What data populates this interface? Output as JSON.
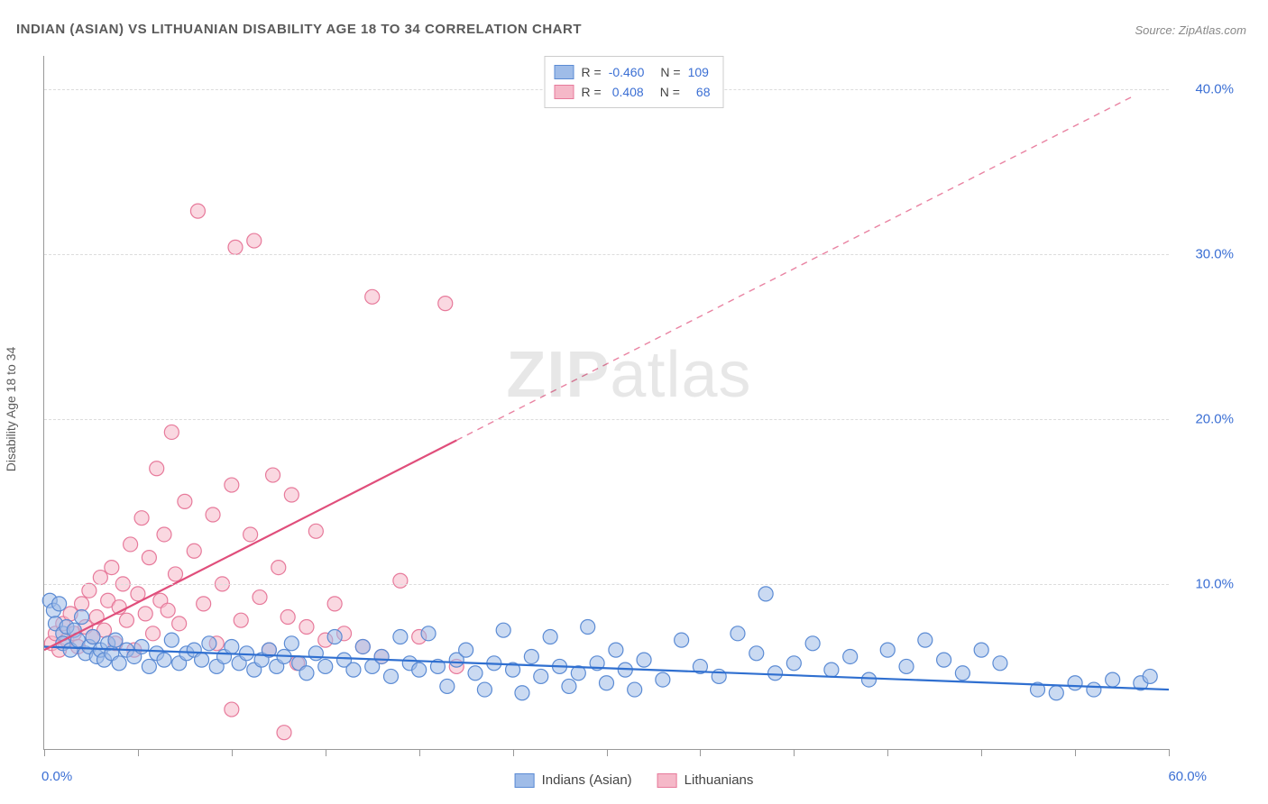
{
  "title": "INDIAN (ASIAN) VS LITHUANIAN DISABILITY AGE 18 TO 34 CORRELATION CHART",
  "source_label": "Source: ",
  "source_name": "ZipAtlas.com",
  "y_axis_label": "Disability Age 18 to 34",
  "watermark_a": "ZIP",
  "watermark_b": "atlas",
  "chart": {
    "type": "scatter",
    "xlim": [
      0,
      60
    ],
    "ylim": [
      0,
      42
    ],
    "x_min_label": "0.0%",
    "x_max_label": "60.0%",
    "x_tick_positions": [
      0,
      5,
      10,
      15,
      20,
      25,
      30,
      35,
      40,
      45,
      50,
      55,
      60
    ],
    "y_gridlines": [
      10,
      20,
      30,
      40
    ],
    "y_tick_labels": [
      "10.0%",
      "20.0%",
      "30.0%",
      "40.0%"
    ],
    "background_color": "#ffffff",
    "grid_color": "#dcdcdc",
    "axis_color": "#999999",
    "label_color": "#3b6fd4",
    "marker_radius": 8,
    "marker_opacity": 0.55,
    "line_width": 2.2,
    "series": [
      {
        "name": "Indians (Asian)",
        "color_fill": "#9fbce8",
        "color_stroke": "#5b8bd4",
        "line_color": "#2f6fd0",
        "R_label": "R = ",
        "R_value": "-0.460",
        "N_label": "N = ",
        "N_value": "109",
        "trend": {
          "x1": 0,
          "y1": 6.2,
          "x2": 60,
          "y2": 3.6,
          "dashed": false
        },
        "points": [
          [
            0.3,
            9.0
          ],
          [
            0.5,
            8.4
          ],
          [
            0.6,
            7.6
          ],
          [
            0.8,
            8.8
          ],
          [
            1.0,
            7.0
          ],
          [
            1.0,
            6.4
          ],
          [
            1.2,
            7.4
          ],
          [
            1.4,
            6.0
          ],
          [
            1.6,
            7.2
          ],
          [
            1.8,
            6.6
          ],
          [
            2.0,
            8.0
          ],
          [
            2.2,
            5.8
          ],
          [
            2.4,
            6.2
          ],
          [
            2.6,
            6.8
          ],
          [
            2.8,
            5.6
          ],
          [
            3.0,
            6.0
          ],
          [
            3.2,
            5.4
          ],
          [
            3.4,
            6.4
          ],
          [
            3.6,
            5.8
          ],
          [
            3.8,
            6.6
          ],
          [
            4.0,
            5.2
          ],
          [
            4.4,
            6.0
          ],
          [
            4.8,
            5.6
          ],
          [
            5.2,
            6.2
          ],
          [
            5.6,
            5.0
          ],
          [
            6.0,
            5.8
          ],
          [
            6.4,
            5.4
          ],
          [
            6.8,
            6.6
          ],
          [
            7.2,
            5.2
          ],
          [
            7.6,
            5.8
          ],
          [
            8.0,
            6.0
          ],
          [
            8.4,
            5.4
          ],
          [
            8.8,
            6.4
          ],
          [
            9.2,
            5.0
          ],
          [
            9.6,
            5.6
          ],
          [
            10.0,
            6.2
          ],
          [
            10.4,
            5.2
          ],
          [
            10.8,
            5.8
          ],
          [
            11.2,
            4.8
          ],
          [
            11.6,
            5.4
          ],
          [
            12.0,
            6.0
          ],
          [
            12.4,
            5.0
          ],
          [
            12.8,
            5.6
          ],
          [
            13.2,
            6.4
          ],
          [
            13.6,
            5.2
          ],
          [
            14.0,
            4.6
          ],
          [
            14.5,
            5.8
          ],
          [
            15.0,
            5.0
          ],
          [
            15.5,
            6.8
          ],
          [
            16.0,
            5.4
          ],
          [
            16.5,
            4.8
          ],
          [
            17.0,
            6.2
          ],
          [
            17.5,
            5.0
          ],
          [
            18.0,
            5.6
          ],
          [
            18.5,
            4.4
          ],
          [
            19.0,
            6.8
          ],
          [
            19.5,
            5.2
          ],
          [
            20.0,
            4.8
          ],
          [
            20.5,
            7.0
          ],
          [
            21.0,
            5.0
          ],
          [
            21.5,
            3.8
          ],
          [
            22.0,
            5.4
          ],
          [
            22.5,
            6.0
          ],
          [
            23.0,
            4.6
          ],
          [
            23.5,
            3.6
          ],
          [
            24.0,
            5.2
          ],
          [
            24.5,
            7.2
          ],
          [
            25.0,
            4.8
          ],
          [
            25.5,
            3.4
          ],
          [
            26.0,
            5.6
          ],
          [
            26.5,
            4.4
          ],
          [
            27.0,
            6.8
          ],
          [
            27.5,
            5.0
          ],
          [
            28.0,
            3.8
          ],
          [
            28.5,
            4.6
          ],
          [
            29.0,
            7.4
          ],
          [
            29.5,
            5.2
          ],
          [
            30.0,
            4.0
          ],
          [
            30.5,
            6.0
          ],
          [
            31.0,
            4.8
          ],
          [
            31.5,
            3.6
          ],
          [
            32.0,
            5.4
          ],
          [
            33.0,
            4.2
          ],
          [
            34.0,
            6.6
          ],
          [
            35.0,
            5.0
          ],
          [
            36.0,
            4.4
          ],
          [
            37.0,
            7.0
          ],
          [
            38.0,
            5.8
          ],
          [
            38.5,
            9.4
          ],
          [
            39.0,
            4.6
          ],
          [
            40.0,
            5.2
          ],
          [
            41.0,
            6.4
          ],
          [
            42.0,
            4.8
          ],
          [
            43.0,
            5.6
          ],
          [
            44.0,
            4.2
          ],
          [
            45.0,
            6.0
          ],
          [
            46.0,
            5.0
          ],
          [
            47.0,
            6.6
          ],
          [
            48.0,
            5.4
          ],
          [
            49.0,
            4.6
          ],
          [
            50.0,
            6.0
          ],
          [
            51.0,
            5.2
          ],
          [
            53.0,
            3.6
          ],
          [
            54.0,
            3.4
          ],
          [
            55.0,
            4.0
          ],
          [
            56.0,
            3.6
          ],
          [
            57.0,
            4.2
          ],
          [
            58.5,
            4.0
          ],
          [
            59.0,
            4.4
          ]
        ]
      },
      {
        "name": "Lithuanians",
        "color_fill": "#f5b8c8",
        "color_stroke": "#e77a9b",
        "line_color": "#e04e7b",
        "R_label": "R = ",
        "R_value": "0.408",
        "N_label": "N = ",
        "N_value": "68",
        "trend": {
          "x1": 0,
          "y1": 6.0,
          "x2": 58,
          "y2": 39.5,
          "dashed_after_x": 22
        },
        "points": [
          [
            0.4,
            6.4
          ],
          [
            0.6,
            7.0
          ],
          [
            0.8,
            6.0
          ],
          [
            1.0,
            7.6
          ],
          [
            1.2,
            6.6
          ],
          [
            1.4,
            8.2
          ],
          [
            1.6,
            7.0
          ],
          [
            1.8,
            6.2
          ],
          [
            2.0,
            8.8
          ],
          [
            2.2,
            7.4
          ],
          [
            2.4,
            9.6
          ],
          [
            2.6,
            6.8
          ],
          [
            2.8,
            8.0
          ],
          [
            3.0,
            10.4
          ],
          [
            3.2,
            7.2
          ],
          [
            3.4,
            9.0
          ],
          [
            3.6,
            11.0
          ],
          [
            3.8,
            6.4
          ],
          [
            4.0,
            8.6
          ],
          [
            4.2,
            10.0
          ],
          [
            4.4,
            7.8
          ],
          [
            4.6,
            12.4
          ],
          [
            4.8,
            6.0
          ],
          [
            5.0,
            9.4
          ],
          [
            5.2,
            14.0
          ],
          [
            5.4,
            8.2
          ],
          [
            5.6,
            11.6
          ],
          [
            5.8,
            7.0
          ],
          [
            6.0,
            17.0
          ],
          [
            6.2,
            9.0
          ],
          [
            6.4,
            13.0
          ],
          [
            6.6,
            8.4
          ],
          [
            6.8,
            19.2
          ],
          [
            7.0,
            10.6
          ],
          [
            7.2,
            7.6
          ],
          [
            7.5,
            15.0
          ],
          [
            8.0,
            12.0
          ],
          [
            8.2,
            32.6
          ],
          [
            8.5,
            8.8
          ],
          [
            9.0,
            14.2
          ],
          [
            9.2,
            6.4
          ],
          [
            9.5,
            10.0
          ],
          [
            10.0,
            16.0
          ],
          [
            10.2,
            30.4
          ],
          [
            10.5,
            7.8
          ],
          [
            11.0,
            13.0
          ],
          [
            11.2,
            30.8
          ],
          [
            11.5,
            9.2
          ],
          [
            12.0,
            6.0
          ],
          [
            12.2,
            16.6
          ],
          [
            12.5,
            11.0
          ],
          [
            13.0,
            8.0
          ],
          [
            13.2,
            15.4
          ],
          [
            13.5,
            5.2
          ],
          [
            14.0,
            7.4
          ],
          [
            14.5,
            13.2
          ],
          [
            15.0,
            6.6
          ],
          [
            15.5,
            8.8
          ],
          [
            16.0,
            7.0
          ],
          [
            17.0,
            6.2
          ],
          [
            17.5,
            27.4
          ],
          [
            18.0,
            5.6
          ],
          [
            19.0,
            10.2
          ],
          [
            20.0,
            6.8
          ],
          [
            21.4,
            27.0
          ],
          [
            22.0,
            5.0
          ],
          [
            10.0,
            2.4
          ],
          [
            12.8,
            1.0
          ]
        ]
      }
    ]
  },
  "legend_bottom": {
    "series1_label": "Indians (Asian)",
    "series2_label": "Lithuanians"
  }
}
